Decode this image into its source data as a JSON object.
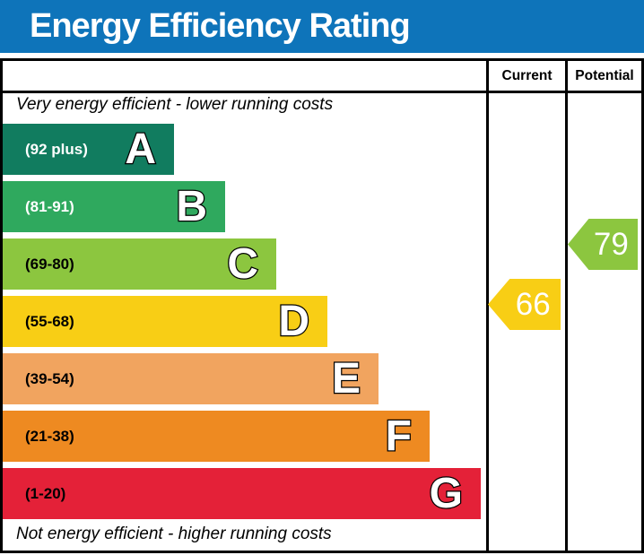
{
  "title": "Energy Efficiency Rating",
  "colors": {
    "header_blue": "#0e74ba",
    "border_black": "#000000",
    "band_a": "#117c5f",
    "band_b": "#2fa95e",
    "band_c": "#8cc63f",
    "band_d": "#f8ce15",
    "band_e": "#f1a45f",
    "band_f": "#ee8a21",
    "band_g": "#e42138",
    "current_arrow": "#f8ce15",
    "potential_arrow": "#8cc63f"
  },
  "table": {
    "columns": {
      "current": "Current",
      "potential": "Potential"
    },
    "top_note": "Very energy efficient - lower running costs",
    "bottom_note": "Not energy efficient - higher running costs",
    "bands": [
      {
        "letter": "A",
        "range": "(92 plus)",
        "color": "#117c5f",
        "label_color": "#ffffff"
      },
      {
        "letter": "B",
        "range": "(81-91)",
        "color": "#2fa95e",
        "label_color": "#ffffff"
      },
      {
        "letter": "C",
        "range": "(69-80)",
        "color": "#8cc63f",
        "label_color": "#000000"
      },
      {
        "letter": "D",
        "range": "(55-68)",
        "color": "#f8ce15",
        "label_color": "#000000"
      },
      {
        "letter": "E",
        "range": "(39-54)",
        "color": "#f1a45f",
        "label_color": "#000000"
      },
      {
        "letter": "F",
        "range": "(21-38)",
        "color": "#ee8a21",
        "label_color": "#000000"
      },
      {
        "letter": "G",
        "range": "(1-20)",
        "color": "#e42138",
        "label_color": "#000000"
      }
    ],
    "current": {
      "value": "66",
      "color": "#f8ce15"
    },
    "potential": {
      "value": "79",
      "color": "#8cc63f"
    }
  },
  "chart_data": {
    "type": "bar",
    "title": "Energy Efficiency Rating",
    "orientation": "horizontal",
    "bands": [
      {
        "letter": "A",
        "range_label": "(92 plus)",
        "min": 92,
        "max": 100,
        "color": "#117c5f"
      },
      {
        "letter": "B",
        "range_label": "(81-91)",
        "min": 81,
        "max": 91,
        "color": "#2fa95e"
      },
      {
        "letter": "C",
        "range_label": "(69-80)",
        "min": 69,
        "max": 80,
        "color": "#8cc63f"
      },
      {
        "letter": "D",
        "range_label": "(55-68)",
        "min": 55,
        "max": 68,
        "color": "#f8ce15"
      },
      {
        "letter": "E",
        "range_label": "(39-54)",
        "min": 39,
        "max": 54,
        "color": "#f1a45f"
      },
      {
        "letter": "F",
        "range_label": "(21-38)",
        "min": 21,
        "max": 38,
        "color": "#ee8a21"
      },
      {
        "letter": "G",
        "range_label": "(1-20)",
        "min": 1,
        "max": 20,
        "color": "#e42138"
      }
    ],
    "series": [
      {
        "name": "Current",
        "value": 66,
        "band": "D"
      },
      {
        "name": "Potential",
        "value": 79,
        "band": "C"
      }
    ],
    "annotations": [
      "Very energy efficient - lower running costs",
      "Not energy efficient - higher running costs"
    ]
  }
}
